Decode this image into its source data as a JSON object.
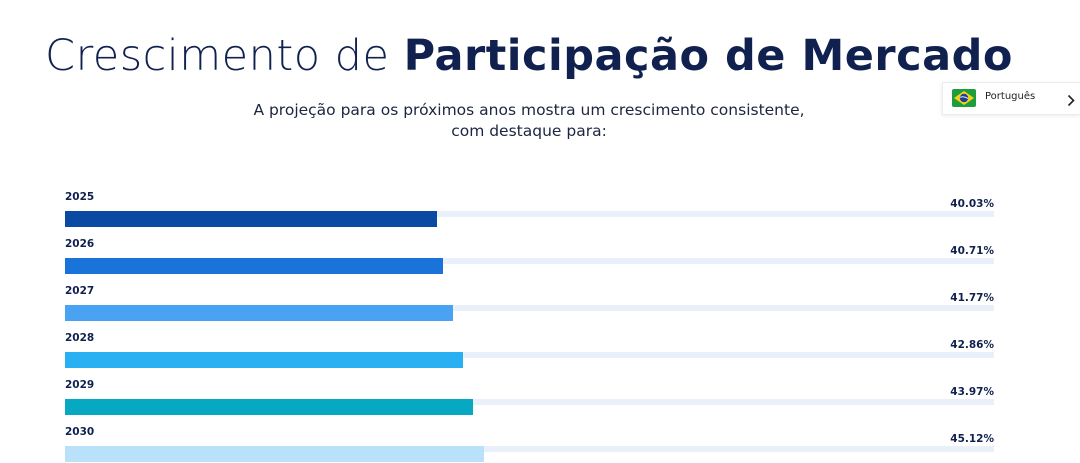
{
  "header": {
    "title_light": "Crescimento de",
    "title_bold": "Participação de Mercado",
    "subtitle_line1": "A projeção para os próximos anos mostra um crescimento consistente,",
    "subtitle_line2": "com destaque para:"
  },
  "language_selector": {
    "label": "Português",
    "flag_icon": "brazil-flag-icon",
    "chevron_icon": "chevron-right-icon"
  },
  "chart_data": {
    "type": "bar",
    "orientation": "horizontal",
    "title": "Crescimento de Participação de Mercado",
    "categories": [
      "2025",
      "2026",
      "2027",
      "2028",
      "2029",
      "2030"
    ],
    "values": [
      40.03,
      40.71,
      41.77,
      42.86,
      43.97,
      45.12
    ],
    "value_labels": [
      "40.03%",
      "40.71%",
      "41.77%",
      "42.86%",
      "43.97%",
      "45.12%"
    ],
    "colors": [
      "#0b4aa2",
      "#1a73d9",
      "#4aa3f2",
      "#29b0f2",
      "#06a8c2",
      "#b9e2fa"
    ],
    "xlim": [
      0,
      100
    ],
    "unit": "%"
  }
}
